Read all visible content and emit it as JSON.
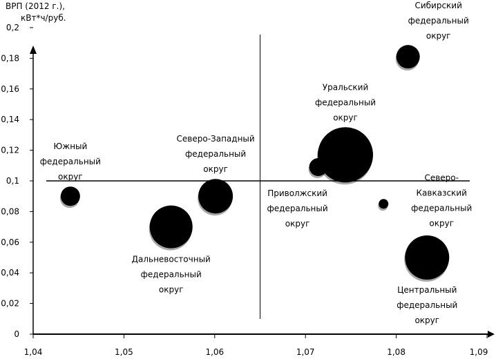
{
  "chart_data": {
    "type": "scatter",
    "subtype": "bubble",
    "title": "",
    "ylabel_lines": [
      "ВРП (2012 г.),",
      "кВт*ч/руб."
    ],
    "xlabel": "",
    "xlim": [
      1.04,
      1.09
    ],
    "ylim": [
      0,
      0.2
    ],
    "x_ticks": [
      "1,04",
      "1,05",
      "1,06",
      "1,07",
      "1,08",
      "1,09"
    ],
    "x_tick_values": [
      1.04,
      1.05,
      1.06,
      1.07,
      1.08,
      1.09
    ],
    "y_ticks": [
      "0",
      "0,02",
      "0,04",
      "0,06",
      "0,08",
      "0,1",
      "0,12",
      "0,14",
      "0,16",
      "0,18",
      "0,2"
    ],
    "y_tick_values": [
      0,
      0.02,
      0.04,
      0.06,
      0.08,
      0.1,
      0.12,
      0.14,
      0.16,
      0.18,
      0.2
    ],
    "grid": false,
    "reference_lines": {
      "x": 1.065,
      "y": 0.1
    },
    "bubble_color": "#000000",
    "points": [
      {
        "name": "Южный федеральный округ",
        "label_lines": [
          "Южный",
          "федеральный",
          "округ"
        ],
        "x": 1.0441,
        "y": 0.09,
        "size": 14,
        "label_pos": "above"
      },
      {
        "name": "Дальневосточный федеральный округ",
        "label_lines": [
          "Дальневосточный",
          "федеральный",
          "округ"
        ],
        "x": 1.0552,
        "y": 0.07,
        "size": 31,
        "label_pos": "below"
      },
      {
        "name": "Северо-Западный федеральный округ",
        "label_lines": [
          "Северо-Западный",
          "федеральный",
          "округ"
        ],
        "x": 1.0601,
        "y": 0.09,
        "size": 25,
        "label_pos": "above"
      },
      {
        "name": "Приволжский федеральный округ",
        "label_lines": [
          "Приволжский",
          "федеральный",
          "округ"
        ],
        "x": 1.0714,
        "y": 0.109,
        "size": 13,
        "label_pos": "below-left"
      },
      {
        "name": "Уральский федеральный округ",
        "label_lines": [
          "Уральский",
          "федеральный",
          "округ"
        ],
        "x": 1.0744,
        "y": 0.117,
        "size": 40,
        "label_pos": "above"
      },
      {
        "name": "Сибирский федеральный округ",
        "label_lines": [
          "Сибирский",
          "федеральный",
          "округ"
        ],
        "x": 1.0813,
        "y": 0.181,
        "size": 17,
        "label_pos": "above-right"
      },
      {
        "name": "Северо-Кавказский федеральный округ",
        "label_lines": [
          "Северо-",
          "Кавказский",
          "федеральный",
          "округ"
        ],
        "x": 1.0786,
        "y": 0.085,
        "size": 7,
        "label_pos": "right"
      },
      {
        "name": "Центральный федеральный округ",
        "label_lines": [
          "Центральный",
          "федеральный",
          "округ"
        ],
        "x": 1.0834,
        "y": 0.05,
        "size": 32,
        "label_pos": "below"
      }
    ]
  }
}
